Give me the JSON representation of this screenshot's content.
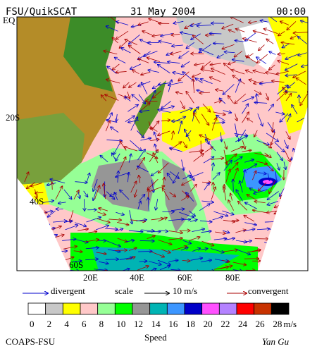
{
  "header": {
    "source": "FSU/QuikSCAT",
    "date": "31 May 2004",
    "time": "00:00"
  },
  "map": {
    "lat_labels": [
      "EQ",
      "20S",
      "40S",
      "60S"
    ],
    "lon_labels": [
      "20E",
      "40E",
      "60E",
      "80E"
    ]
  },
  "legend": {
    "divergent": "divergent",
    "scale": "scale",
    "scale_value": "10 m/s",
    "convergent": "convergent",
    "divergent_color": "#0000cc",
    "convergent_color": "#aa0000"
  },
  "colorbar": {
    "title": "Speed",
    "unit": "m/s",
    "ticks": [
      0,
      2,
      4,
      6,
      8,
      10,
      12,
      14,
      16,
      18,
      20,
      22,
      24,
      26,
      28
    ],
    "colors": [
      "#ffffff",
      "#c8c8c8",
      "#ffff00",
      "#ffc8c8",
      "#96ff96",
      "#00ff00",
      "#969696",
      "#00b4b4",
      "#3c96ff",
      "#0000c8",
      "#ff50ff",
      "#b482ff",
      "#ff0000",
      "#c83200",
      "#000000"
    ]
  },
  "footer": {
    "institution": "COAPS-FSU",
    "author": "Yan Gu"
  }
}
